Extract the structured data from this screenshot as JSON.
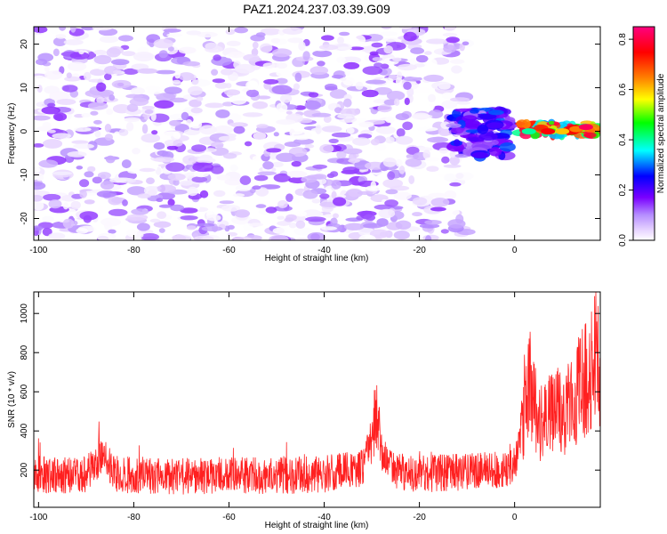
{
  "title": "PAZ1.2024.237.03.39.G09",
  "chart_data": [
    {
      "type": "heatmap",
      "xlabel": "Height of straight line (km)",
      "ylabel": "Frequency (Hz)",
      "xlim": [
        -101,
        18
      ],
      "ylim": [
        -25,
        24
      ],
      "xticks": [
        -100,
        -80,
        -60,
        -40,
        -20,
        0
      ],
      "yticks": [
        -20,
        -10,
        0,
        10,
        20
      ],
      "colorbar": {
        "label": "Normalized spectral amplitude",
        "range": [
          0.0,
          0.85
        ],
        "ticks": [
          0.0,
          0.2,
          0.4,
          0.6,
          0.8
        ],
        "colors": [
          "#ffffff",
          "#e6d2ff",
          "#b48cff",
          "#7a00ff",
          "#0000ff",
          "#00ffff",
          "#00ff00",
          "#ffff00",
          "#ff8000",
          "#ff0000",
          "#ff0080"
        ]
      },
      "regions": [
        {
          "x_range": [
            -101,
            -10
          ],
          "y_range": [
            -25,
            24
          ],
          "amplitude_range": [
            0.0,
            0.15
          ]
        },
        {
          "x_range": [
            -13,
            -1
          ],
          "y_range": [
            -6,
            5
          ],
          "amplitude_range": [
            0.1,
            0.3
          ]
        },
        {
          "x_range": [
            1,
            18
          ],
          "y_range": [
            -1,
            2
          ],
          "amplitude_range": [
            0.3,
            0.85
          ]
        }
      ],
      "ridge": [
        {
          "x": 3,
          "y": 0.0,
          "amplitude": 0.4
        },
        {
          "x": 7,
          "y": 0.0,
          "amplitude": 0.75
        },
        {
          "x": 10,
          "y": 0.0,
          "amplitude": 0.6
        },
        {
          "x": 13,
          "y": 0.5,
          "amplitude": 0.65
        },
        {
          "x": 15,
          "y": 1.0,
          "amplitude": 0.82
        }
      ]
    },
    {
      "type": "line",
      "xlabel": "Height of straight line (km)",
      "ylabel": "SNR (10 * v/v)",
      "xlim": [
        -101,
        18
      ],
      "ylim": [
        10,
        1110
      ],
      "xticks": [
        -100,
        -80,
        -60,
        -40,
        -20,
        0
      ],
      "yticks": [
        200,
        400,
        600,
        800,
        1000
      ],
      "color": "#ff0000",
      "series": [
        {
          "x": [
            -101,
            -95,
            -90,
            -86,
            -85,
            -80,
            -70,
            -60,
            -50,
            -40,
            -32,
            -29,
            -28,
            -26,
            -20,
            -10,
            -5,
            -2,
            0,
            2,
            3,
            5,
            8,
            10,
            12,
            14,
            16,
            17,
            18
          ],
          "y": [
            180,
            170,
            175,
            300,
            180,
            175,
            170,
            175,
            170,
            180,
            210,
            480,
            300,
            200,
            180,
            190,
            200,
            195,
            230,
            450,
            700,
            420,
            520,
            480,
            560,
            640,
            700,
            900,
            650
          ]
        }
      ]
    }
  ]
}
